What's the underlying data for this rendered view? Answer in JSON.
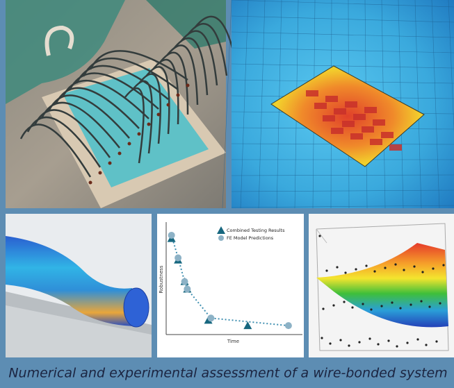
{
  "caption": "Numerical and experimental assessment of a wire-bonded system",
  "chart_data": {
    "type": "scatter",
    "x_label": "Time",
    "y_label": "Robustness",
    "xlim": [
      0,
      10
    ],
    "ylim": [
      0,
      10
    ],
    "series": [
      {
        "name": "Combined Testing Results",
        "color": "#17677f",
        "marker": "triangle",
        "x": [
          0.3,
          0.8,
          1.3,
          1.5,
          3.1,
          6.1
        ],
        "values": [
          8.8,
          6.8,
          4.8,
          4.1,
          1.2,
          0.7
        ]
      },
      {
        "name": "FE Model Predictions",
        "color": "#8db2c6",
        "marker": "circle",
        "line": "dotted",
        "x": [
          0.3,
          0.8,
          1.3,
          1.5,
          3.3,
          9.2
        ],
        "values": [
          9.1,
          7.0,
          4.8,
          4.1,
          1.4,
          0.7
        ]
      }
    ]
  }
}
